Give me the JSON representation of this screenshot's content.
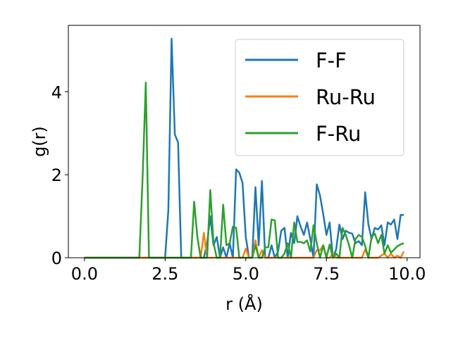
{
  "chart_data": {
    "type": "line",
    "xlabel": "r (Å)",
    "ylabel": "g(r)",
    "xlim": [
      -0.5,
      10.4
    ],
    "ylim": [
      0,
      5.6
    ],
    "xticks": [
      0.0,
      2.5,
      5.0,
      7.5,
      10.0
    ],
    "xtick_labels": [
      "0.0",
      "2.5",
      "5.0",
      "7.5",
      "10.0"
    ],
    "yticks": [
      0,
      2,
      4
    ],
    "ytick_labels": [
      "0",
      "2",
      "4"
    ],
    "grid": false,
    "legend_position": "top-right",
    "series": [
      {
        "name": "F-F",
        "color": "#1f77b4",
        "x": [
          0.0,
          2.5,
          2.6,
          2.7,
          2.8,
          2.9,
          3.0,
          3.1,
          3.5,
          3.6,
          3.7,
          3.8,
          3.9,
          4.0,
          4.1,
          4.2,
          4.3,
          4.4,
          4.5,
          4.6,
          4.7,
          4.8,
          4.9,
          5.0,
          5.1,
          5.2,
          5.3,
          5.4,
          5.5,
          5.6,
          5.7,
          5.8,
          5.9,
          6.0,
          6.1,
          6.2,
          6.3,
          6.4,
          6.5,
          6.6,
          6.7,
          6.8,
          6.9,
          7.0,
          7.1,
          7.2,
          7.3,
          7.4,
          7.5,
          7.6,
          7.7,
          7.8,
          7.9,
          8.0,
          8.1,
          8.2,
          8.3,
          8.4,
          8.5,
          8.6,
          8.7,
          8.8,
          8.9,
          9.0,
          9.1,
          9.2,
          9.3,
          9.4,
          9.5,
          9.6,
          9.7,
          9.8,
          9.9
        ],
        "y": [
          0.0,
          0.0,
          1.15,
          5.28,
          2.97,
          2.78,
          0.0,
          0.0,
          0.0,
          0.0,
          0.0,
          0.35,
          1.0,
          0.3,
          0.5,
          0.0,
          0.25,
          0.0,
          0.35,
          0.0,
          2.13,
          2.05,
          1.8,
          0.5,
          0.0,
          0.0,
          1.7,
          0.3,
          1.85,
          0.0,
          0.0,
          0.3,
          0.0,
          0.15,
          0.65,
          0.72,
          0.0,
          0.6,
          0.35,
          1.0,
          0.75,
          0.55,
          0.85,
          0.45,
          0.0,
          1.77,
          1.5,
          1.05,
          0.55,
          0.85,
          0.0,
          0.2,
          0.8,
          0.45,
          0.65,
          0.6,
          0.58,
          0.35,
          0.4,
          0.3,
          1.58,
          0.8,
          0.45,
          0.72,
          0.68,
          0.78,
          0.3,
          0.85,
          0.8,
          0.92,
          0.45,
          1.03,
          1.03
        ]
      },
      {
        "name": "Ru-Ru",
        "color": "#ff7f0e",
        "x": [
          0.0,
          3.6,
          3.7,
          3.8,
          3.9,
          4.8,
          4.9,
          5.0,
          5.1,
          5.2,
          5.3,
          5.4,
          5.5,
          5.6,
          5.7,
          7.0,
          7.1,
          7.2,
          7.3,
          7.4,
          7.5,
          7.6,
          7.7,
          7.8,
          8.1,
          8.6,
          8.7,
          8.8,
          8.9,
          9.0,
          9.1,
          9.2,
          9.3,
          9.4,
          9.5,
          9.6,
          9.7,
          9.8,
          9.9
        ],
        "y": [
          0.0,
          0.0,
          0.6,
          0.0,
          0.0,
          0.0,
          0.0,
          0.22,
          0.0,
          0.0,
          0.42,
          0.0,
          0.18,
          0.0,
          0.0,
          0.0,
          0.0,
          0.18,
          0.18,
          0.3,
          0.0,
          0.0,
          0.1,
          0.0,
          0.0,
          0.0,
          0.2,
          0.0,
          0.0,
          0.0,
          0.0,
          0.05,
          0.1,
          0.0,
          0.1,
          0.0,
          0.05,
          0.0,
          0.15
        ]
      },
      {
        "name": "F-Ru",
        "color": "#2ca02c",
        "x": [
          0.0,
          1.7,
          1.8,
          1.9,
          2.0,
          2.1,
          3.2,
          3.3,
          3.4,
          3.5,
          3.6,
          3.7,
          3.8,
          3.9,
          4.0,
          4.1,
          4.2,
          4.3,
          4.4,
          4.5,
          4.6,
          4.7,
          4.8,
          4.9,
          5.0,
          5.1,
          5.2,
          5.3,
          5.4,
          5.5,
          5.6,
          5.7,
          5.8,
          5.9,
          6.0,
          6.1,
          6.2,
          6.3,
          6.4,
          6.5,
          6.6,
          6.7,
          6.8,
          6.9,
          7.0,
          7.1,
          7.2,
          7.3,
          7.4,
          7.5,
          7.6,
          7.7,
          7.8,
          7.9,
          8.0,
          8.1,
          8.2,
          8.3,
          8.4,
          8.5,
          8.6,
          8.7,
          8.8,
          8.9,
          9.0,
          9.1,
          9.2,
          9.3,
          9.4,
          9.5,
          9.6,
          9.7,
          9.8,
          9.9
        ],
        "y": [
          0.0,
          0.0,
          1.9,
          4.22,
          0.0,
          0.0,
          0.0,
          0.0,
          1.35,
          0.5,
          0.0,
          0.0,
          0.0,
          1.63,
          0.35,
          0.0,
          0.0,
          1.28,
          0.3,
          0.35,
          0.75,
          0.72,
          0.0,
          0.0,
          0.0,
          0.0,
          0.0,
          0.3,
          0.0,
          0.0,
          0.25,
          0.25,
          0.92,
          0.9,
          0.0,
          0.0,
          0.1,
          0.35,
          0.0,
          0.85,
          0.38,
          0.38,
          0.35,
          0.42,
          0.15,
          0.78,
          0.35,
          0.0,
          0.3,
          0.0,
          0.32,
          0.0,
          0.1,
          0.0,
          0.72,
          0.55,
          0.3,
          0.0,
          0.45,
          0.55,
          0.5,
          0.28,
          0.0,
          0.5,
          0.58,
          0.35,
          0.55,
          0.1,
          0.3,
          0.12,
          0.2,
          0.28,
          0.32,
          0.35
        ]
      }
    ]
  }
}
